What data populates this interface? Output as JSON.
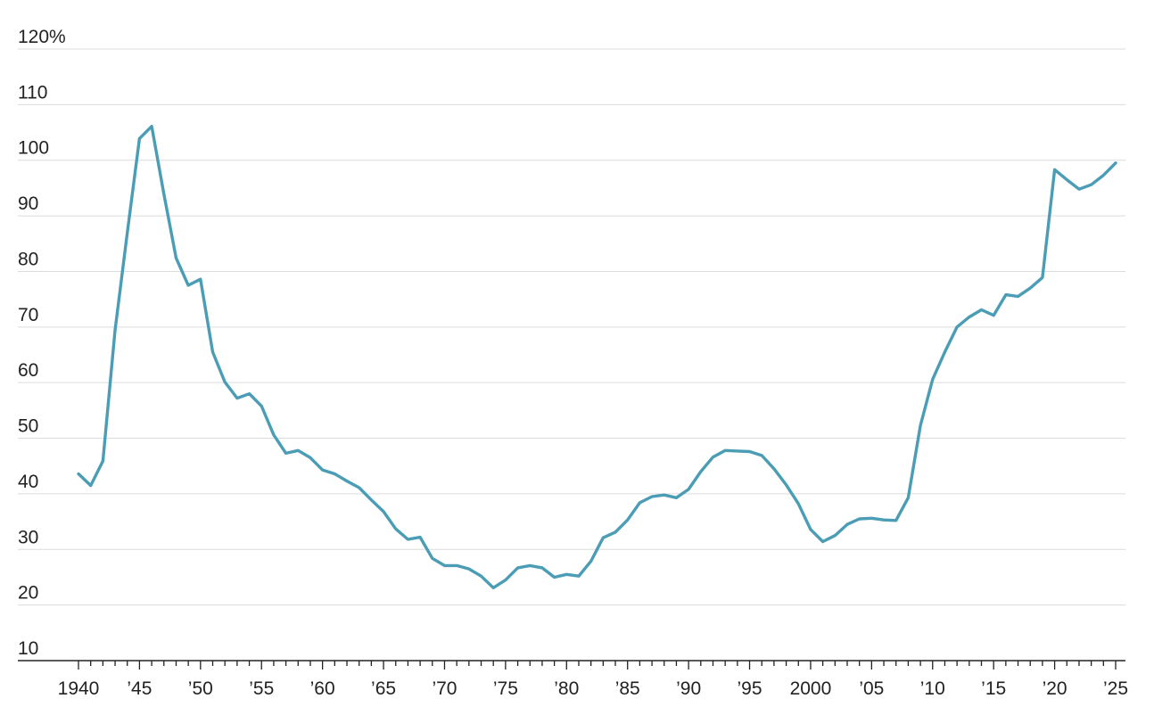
{
  "chart_data": {
    "type": "line",
    "title": "",
    "xlabel": "",
    "ylabel": "",
    "xlim": [
      1940,
      2025
    ],
    "ylim": [
      10,
      120
    ],
    "grid": true,
    "y_ticks": [
      {
        "value": 120,
        "label": "120%"
      },
      {
        "value": 110,
        "label": "110"
      },
      {
        "value": 100,
        "label": "100"
      },
      {
        "value": 90,
        "label": "90"
      },
      {
        "value": 80,
        "label": "80"
      },
      {
        "value": 70,
        "label": "70"
      },
      {
        "value": 60,
        "label": "60"
      },
      {
        "value": 50,
        "label": "50"
      },
      {
        "value": 40,
        "label": "40"
      },
      {
        "value": 30,
        "label": "30"
      },
      {
        "value": 20,
        "label": "20"
      },
      {
        "value": 10,
        "label": "10"
      }
    ],
    "x_ticks": [
      {
        "value": 1940,
        "label": "1940"
      },
      {
        "value": 1945,
        "label": "’45"
      },
      {
        "value": 1950,
        "label": "’50"
      },
      {
        "value": 1955,
        "label": "’55"
      },
      {
        "value": 1960,
        "label": "’60"
      },
      {
        "value": 1965,
        "label": "’65"
      },
      {
        "value": 1970,
        "label": "’70"
      },
      {
        "value": 1975,
        "label": "’75"
      },
      {
        "value": 1980,
        "label": "’80"
      },
      {
        "value": 1985,
        "label": "’85"
      },
      {
        "value": 1990,
        "label": "’90"
      },
      {
        "value": 1995,
        "label": "’95"
      },
      {
        "value": 2000,
        "label": "2000"
      },
      {
        "value": 2005,
        "label": "’05"
      },
      {
        "value": 2010,
        "label": "’10"
      },
      {
        "value": 2015,
        "label": "’15"
      },
      {
        "value": 2020,
        "label": "’20"
      },
      {
        "value": 2025,
        "label": "’25"
      }
    ],
    "series": [
      {
        "color": "#4a9db5",
        "x": [
          1940,
          1941,
          1942,
          1943,
          1944,
          1945,
          1946,
          1947,
          1948,
          1949,
          1950,
          1951,
          1952,
          1953,
          1954,
          1955,
          1956,
          1957,
          1958,
          1959,
          1960,
          1961,
          1962,
          1963,
          1964,
          1965,
          1966,
          1967,
          1968,
          1969,
          1970,
          1971,
          1972,
          1973,
          1974,
          1975,
          1976,
          1977,
          1978,
          1979,
          1980,
          1981,
          1982,
          1983,
          1984,
          1985,
          1986,
          1987,
          1988,
          1989,
          1990,
          1991,
          1992,
          1993,
          1994,
          1995,
          1996,
          1997,
          1998,
          1999,
          2000,
          2001,
          2002,
          2003,
          2004,
          2005,
          2006,
          2007,
          2008,
          2009,
          2010,
          2011,
          2012,
          2013,
          2014,
          2015,
          2016,
          2017,
          2018,
          2019,
          2020,
          2021,
          2022,
          2023,
          2024,
          2025
        ],
        "y": [
          43.6,
          41.5,
          45.9,
          69.4,
          86.9,
          103.9,
          106.1,
          93.9,
          82.4,
          77.5,
          78.6,
          65.5,
          60.1,
          57.2,
          58.0,
          55.8,
          50.6,
          47.3,
          47.8,
          46.5,
          44.3,
          43.6,
          42.3,
          41.1,
          38.9,
          36.8,
          33.7,
          31.8,
          32.2,
          28.4,
          27.1,
          27.1,
          26.5,
          25.2,
          23.1,
          24.5,
          26.7,
          27.1,
          26.7,
          25.0,
          25.5,
          25.2,
          27.9,
          32.1,
          33.1,
          35.3,
          38.4,
          39.5,
          39.8,
          39.3,
          40.8,
          44.0,
          46.6,
          47.8,
          47.7,
          47.6,
          46.9,
          44.5,
          41.6,
          38.2,
          33.6,
          31.4,
          32.5,
          34.5,
          35.5,
          35.6,
          35.3,
          35.2,
          39.3,
          52.3,
          60.6,
          65.5,
          70.0,
          71.8,
          73.1,
          72.1,
          75.8,
          75.5,
          77.0,
          78.9,
          98.3,
          96.5,
          94.8,
          95.6,
          97.3,
          99.5
        ]
      }
    ]
  }
}
